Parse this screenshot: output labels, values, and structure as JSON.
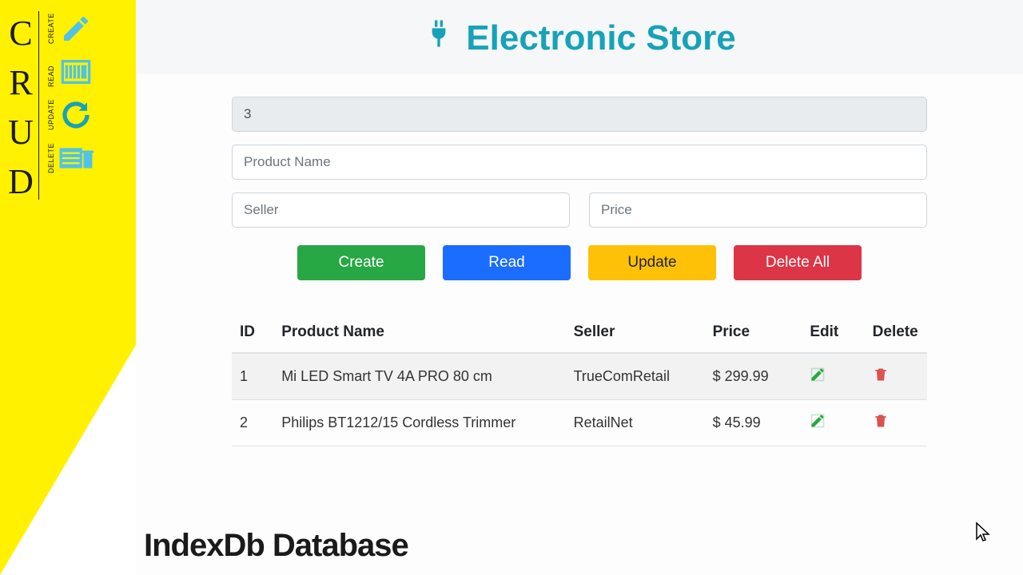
{
  "colors": {
    "accent_teal": "#17a2b8",
    "panel_yellow": "#fff100",
    "btn_green": "#28a745",
    "btn_blue": "#1a6dff",
    "btn_yellow": "#ffc107",
    "btn_yellow_text": "#212529",
    "btn_red": "#dc3545",
    "edit_icon": "#28a745",
    "delete_icon": "#d9534f",
    "row_stripe": "#f2f2f2",
    "header_bg": "#f5f7f8"
  },
  "crud_panel": {
    "letters": [
      "C",
      "R",
      "U",
      "D"
    ],
    "items": [
      {
        "label": "CREATE",
        "icon": "pencil-icon",
        "icon_color": "#4fc3e8"
      },
      {
        "label": "READ",
        "icon": "barcode-icon",
        "icon_color": "#4fc3e8"
      },
      {
        "label": "UPDATE",
        "icon": "refresh-icon",
        "icon_color": "#17a2b8"
      },
      {
        "label": "DELETE",
        "icon": "storage-trash-icon",
        "icon_color": "#4fc3e8"
      }
    ]
  },
  "header": {
    "title": "Electronic Store"
  },
  "form": {
    "id_value": "3",
    "name_placeholder": "Product Name",
    "seller_placeholder": "Seller",
    "price_placeholder": "Price"
  },
  "buttons": {
    "create": "Create",
    "read": "Read",
    "update": "Update",
    "delete_all": "Delete All"
  },
  "table": {
    "columns": [
      "ID",
      "Product Name",
      "Seller",
      "Price",
      "Edit",
      "Delete"
    ],
    "col_widths": [
      "6%",
      "42%",
      "20%",
      "14%",
      "9%",
      "9%"
    ],
    "rows": [
      {
        "id": "1",
        "name": "Mi LED Smart TV 4A PRO 80 cm",
        "seller": "TrueComRetail",
        "price": "$ 299.99"
      },
      {
        "id": "2",
        "name": "Philips BT1212/15 Cordless Trimmer",
        "seller": "RetailNet",
        "price": "$ 45.99"
      }
    ]
  },
  "footer": {
    "label": "IndexDb Database"
  }
}
